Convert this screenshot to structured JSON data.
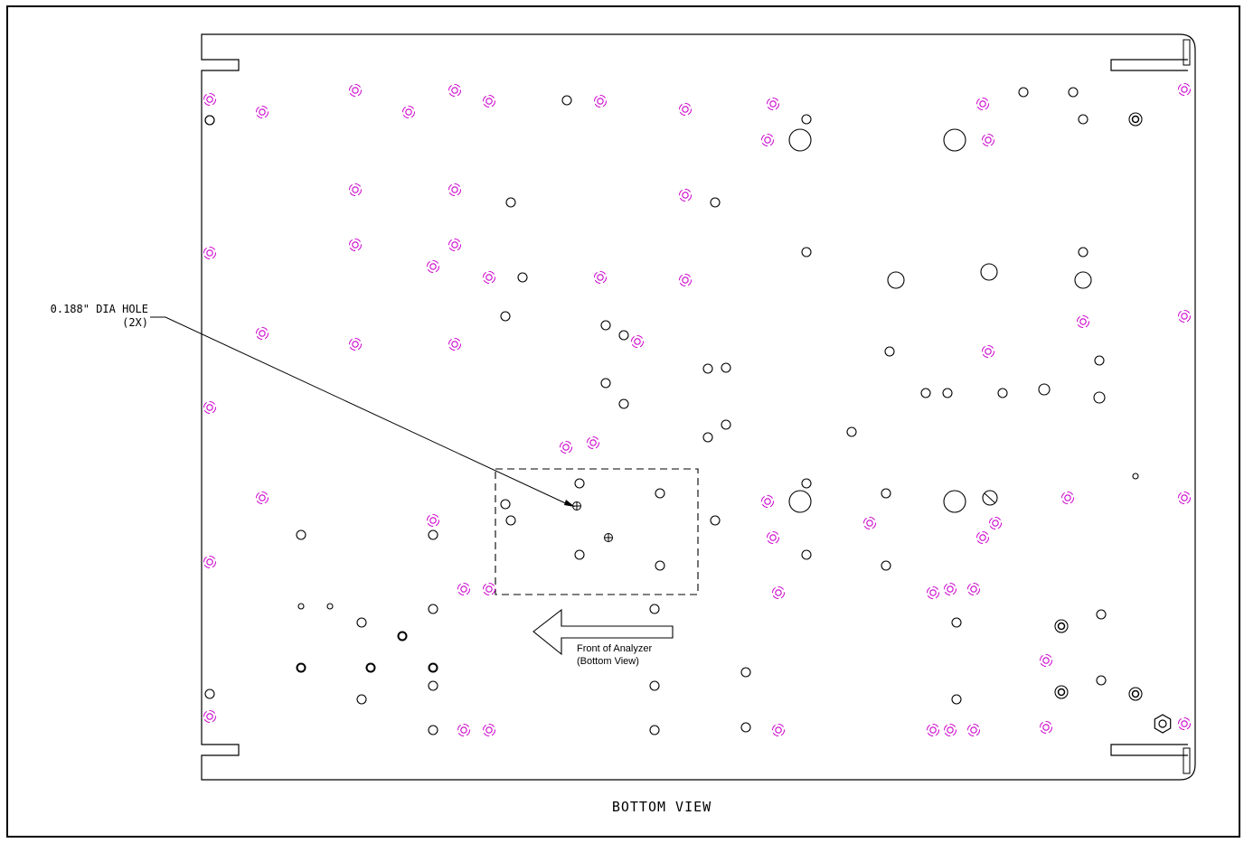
{
  "callout": {
    "line1": "0.188\" DIA HOLE",
    "line2": "(2X)"
  },
  "front_note": {
    "line1": "Front of Analyzer",
    "line2": "(Bottom View)"
  },
  "view_title": "BOTTOM VIEW",
  "colors": {
    "outline": "#000000",
    "fastener": "#cc00cc"
  }
}
